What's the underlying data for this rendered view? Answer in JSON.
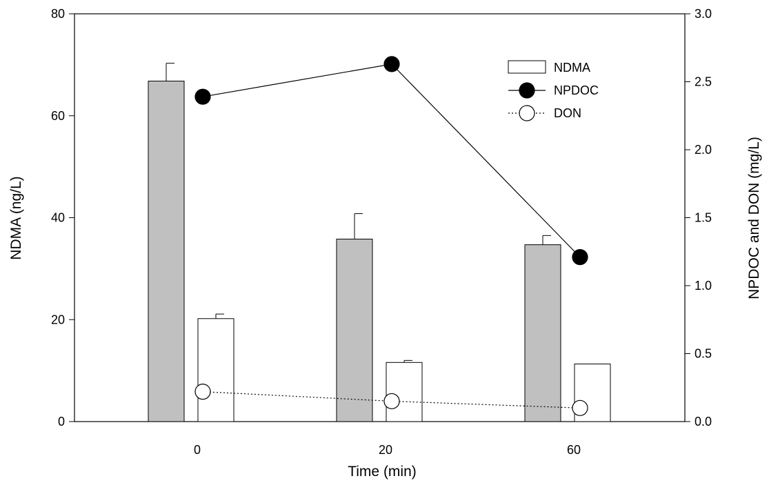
{
  "chart_data": {
    "type": "bar",
    "categories": [
      "0",
      "20",
      "60"
    ],
    "xlabel": "Time (min)",
    "ylabel": "NDMA (ng/L)",
    "ylabel_right": "NPDOC and DON (mg/L)",
    "ylim": [
      0,
      80
    ],
    "ylim_right": [
      0,
      3.0
    ],
    "yticks": [
      "0",
      "20",
      "40",
      "60",
      "80"
    ],
    "yticks_right": [
      "0.0",
      "0.5",
      "1.0",
      "1.5",
      "2.0",
      "2.5",
      "3.0"
    ],
    "bar_series": [
      {
        "fill": "#c0c0c0",
        "values": [
          66.8,
          35.8,
          34.7
        ],
        "errors": [
          3.5,
          5.0,
          1.8
        ]
      },
      {
        "name": "NDMA",
        "fill": "#ffffff",
        "values": [
          20.2,
          11.6,
          11.3
        ],
        "errors": [
          0.9,
          0.4,
          0.0
        ]
      }
    ],
    "line_series": [
      {
        "name": "NPDOC",
        "axis": "right",
        "marker": "filled-circle",
        "line": "solid",
        "values": [
          2.39,
          2.63,
          1.21
        ]
      },
      {
        "name": "DON",
        "axis": "right",
        "marker": "open-circle",
        "line": "dotted",
        "values": [
          0.22,
          0.15,
          0.1
        ]
      }
    ],
    "legend": {
      "position": "top-right",
      "entries": [
        {
          "label": "NDMA",
          "symbol": "open-bar"
        },
        {
          "label": "NPDOC",
          "symbol": "filled-circle-line"
        },
        {
          "label": "DON",
          "symbol": "open-circle-dotted"
        }
      ]
    },
    "grid": false
  }
}
